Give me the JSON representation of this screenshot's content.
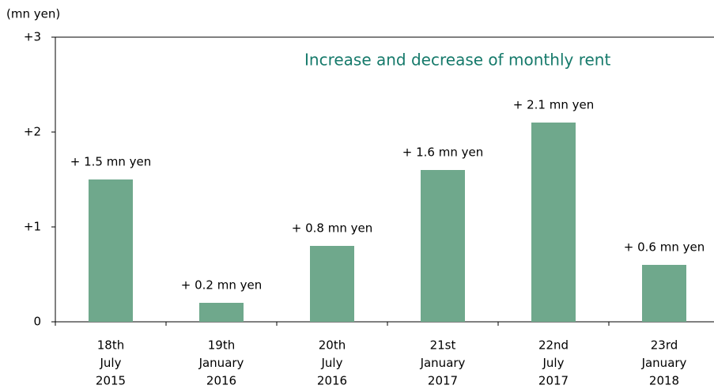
{
  "chart_data": {
    "type": "bar",
    "title": "Increase and decrease of monthly rent",
    "y_label": "(mn yen)",
    "categories": [
      [
        "18th",
        "July",
        "2015"
      ],
      [
        "19th",
        "January",
        "2016"
      ],
      [
        "20th",
        "July",
        "2016"
      ],
      [
        "21st",
        "January",
        "2017"
      ],
      [
        "22nd",
        "July",
        "2017"
      ],
      [
        "23rd",
        "January",
        "2018"
      ]
    ],
    "values": [
      1.5,
      0.2,
      0.8,
      1.6,
      2.1,
      0.6
    ],
    "value_labels": [
      "+ 1.5 mn yen",
      "+ 0.2 mn yen",
      "+ 0.8 mn yen",
      "+ 1.6 mn yen",
      "+ 2.1 mn yen",
      "+ 0.6 mn yen"
    ],
    "color": "#6fa88c",
    "ylim": [
      0,
      3
    ],
    "yticks": [
      0,
      {
        "value": 1,
        "label": "+1"
      },
      {
        "value": 2,
        "label": "+2"
      },
      {
        "value": 3,
        "label": "+3"
      }
    ],
    "grid": false
  }
}
